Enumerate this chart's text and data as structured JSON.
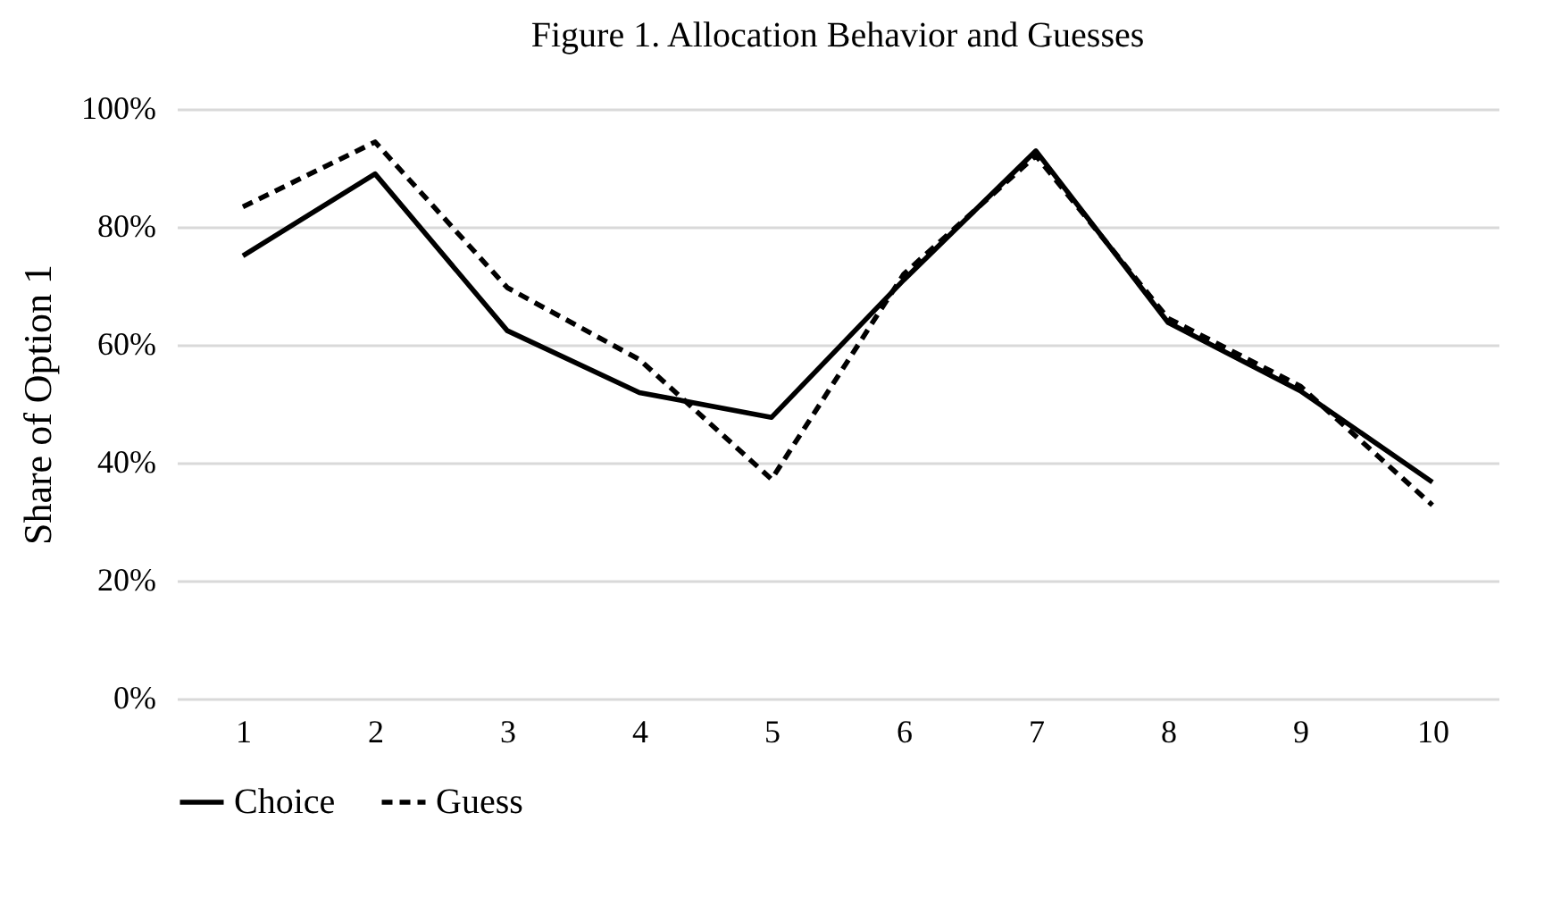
{
  "chart_data": {
    "type": "line",
    "title": "Figure 1. Allocation Behavior and Guesses",
    "ylabel": "Share of Option 1",
    "categories": [
      "1",
      "2",
      "3",
      "4",
      "5",
      "6",
      "7",
      "8",
      "9",
      "10"
    ],
    "series": [
      {
        "name": "Choice",
        "color": "#000000",
        "line_style": "solid",
        "values": [
          75.1,
          89.0,
          62.4,
          51.9,
          47.7,
          71,
          92.9,
          63.8,
          52.2,
          36.7
        ]
      },
      {
        "name": "Guess",
        "color": "#000000",
        "line_style": "dashed",
        "values": [
          83.4,
          94.4,
          69.7,
          57.5,
          37.2,
          72,
          92.1,
          64.5,
          53,
          32.8
        ]
      }
    ],
    "ylim": [
      0,
      100
    ],
    "yticks": [
      {
        "value": 0,
        "label": "0%"
      },
      {
        "value": 20,
        "label": "20%"
      },
      {
        "value": 40,
        "label": "40%"
      },
      {
        "value": 60,
        "label": "60%"
      },
      {
        "value": 80,
        "label": "80%"
      },
      {
        "value": 100,
        "label": "100%"
      }
    ],
    "grid": "y",
    "legend": "bottom",
    "marker": "none"
  }
}
